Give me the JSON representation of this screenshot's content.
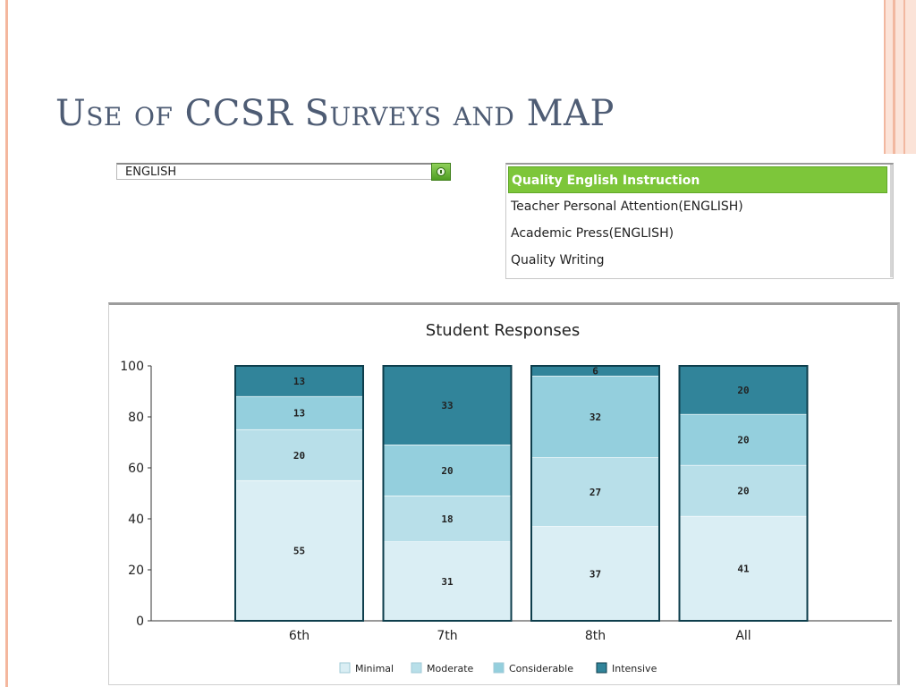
{
  "slide": {
    "title": "Use of CCSR Surveys and MAP"
  },
  "subject_selector": {
    "value": "ENGLISH",
    "button_color": "#5aae2a"
  },
  "measure_list": {
    "items": [
      "Quality English Instruction",
      "Teacher Personal Attention(ENGLISH)",
      "Academic Press(ENGLISH)",
      "Quality Writing"
    ],
    "selected_index": 0,
    "selected_color": "#7dc63a"
  },
  "chart_data": {
    "type": "bar",
    "stacked": true,
    "title": "Student Responses",
    "xlabel": "",
    "ylabel": "",
    "categories": [
      "6th",
      "7th",
      "8th",
      "All"
    ],
    "ylim": [
      0,
      100
    ],
    "yticks": [
      0,
      20,
      40,
      60,
      80,
      100
    ],
    "grid": false,
    "legend_position": "bottom",
    "series": [
      {
        "name": "Minimal",
        "values": [
          55,
          31,
          37,
          41
        ],
        "color": "#daeef4"
      },
      {
        "name": "Moderate",
        "values": [
          20,
          18,
          27,
          20
        ],
        "color": "#b8dfe9"
      },
      {
        "name": "Considerable",
        "values": [
          13,
          20,
          32,
          20
        ],
        "color": "#94cfdd"
      },
      {
        "name": "Intensive",
        "values": [
          13,
          33,
          6,
          20
        ],
        "color": "#31849a"
      }
    ],
    "outline_color": "#0e3e4c"
  }
}
